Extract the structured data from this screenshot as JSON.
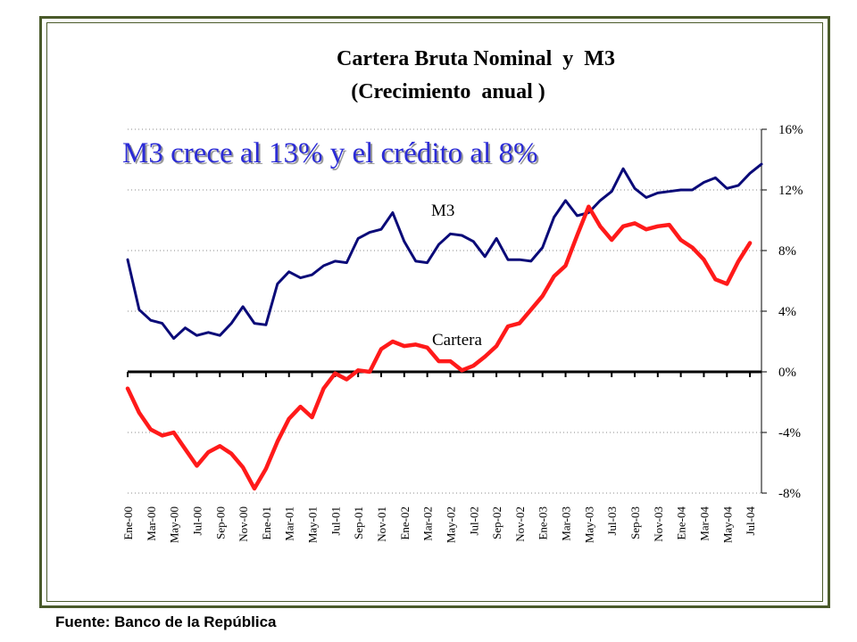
{
  "source_note": "Fuente: Banco de la República",
  "chart_data": {
    "type": "line",
    "title": "Cartera Bruta Nominal  y  M3",
    "subtitle": "(Crecimiento  anual )",
    "annotation": "M3 crece al 13% y el crédito al 8%",
    "ylim": [
      -8,
      16
    ],
    "ytick_labels": [
      "-8%",
      "-4%",
      "0%",
      "4%",
      "8%",
      "12%",
      "16%"
    ],
    "ytick_values": [
      -8,
      -4,
      0,
      4,
      8,
      12,
      16
    ],
    "yaxis_position": "right",
    "grid": "horizontal dotted",
    "x_labels": [
      "Ene-00",
      "Mar-00",
      "May-00",
      "Jul-00",
      "Sep-00",
      "Nov-00",
      "Ene-01",
      "Mar-01",
      "May-01",
      "Jul-01",
      "Sep-01",
      "Nov-01",
      "Ene-02",
      "Mar-02",
      "May-02",
      "Jul-02",
      "Sep-02",
      "Nov-02",
      "Ene-03",
      "Mar-03",
      "May-03",
      "Jul-03",
      "Sep-03",
      "Nov-03",
      "Ene-04",
      "Mar-04",
      "May-04",
      "Jul-04"
    ],
    "series": [
      {
        "name": "M3",
        "color": "#0a0a78",
        "values": [
          7.4,
          4.1,
          3.4,
          3.2,
          2.2,
          2.9,
          2.4,
          2.6,
          2.4,
          3.2,
          4.3,
          3.2,
          3.1,
          5.8,
          6.6,
          6.2,
          6.4,
          7.0,
          7.3,
          7.2,
          8.8,
          9.2,
          9.4,
          10.5,
          8.6,
          7.3,
          7.2,
          8.4,
          9.1,
          9.0,
          8.6,
          7.6,
          8.8,
          7.4,
          7.4,
          7.3,
          8.2,
          10.2,
          11.3,
          10.3,
          10.5,
          11.3,
          11.9,
          13.4,
          12.1,
          11.5,
          11.8,
          11.9,
          12.0,
          12.0,
          12.5,
          12.8,
          12.1,
          12.3,
          13.1,
          13.7
        ]
      },
      {
        "name": "Cartera",
        "color": "#ff1a1a",
        "values": [
          -1.1,
          -2.7,
          -3.8,
          -4.2,
          -4.0,
          -5.1,
          -6.2,
          -5.3,
          -4.9,
          -5.4,
          -6.3,
          -7.7,
          -6.4,
          -4.6,
          -3.1,
          -2.3,
          -3.0,
          -1.1,
          -0.1,
          -0.5,
          0.1,
          0.0,
          1.5,
          2.0,
          1.7,
          1.8,
          1.6,
          0.7,
          0.7,
          0.1,
          0.4,
          1.0,
          1.7,
          3.0,
          3.2,
          4.1,
          5.0,
          6.3,
          7.0,
          9.0,
          10.9,
          9.6,
          8.7,
          9.6,
          9.8,
          9.4,
          9.6,
          9.7,
          8.7,
          8.2,
          7.4,
          6.1,
          5.8,
          7.3,
          8.5
        ]
      }
    ]
  }
}
